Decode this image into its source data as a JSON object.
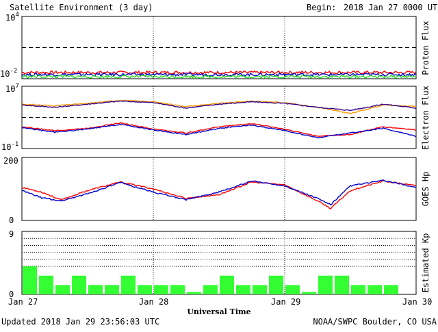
{
  "header": {
    "title": "Satellite Environment (3 day)",
    "begin_label": "Begin:",
    "begin_value": "2018 Jan 27 0000 UTC"
  },
  "footer": {
    "updated": "Updated 2018 Jan 29 23:56:03 UTC",
    "credit": "NOAA/SWPC Boulder, CO USA"
  },
  "x_axis": {
    "label": "Universal Time",
    "ticks": [
      "Jan 27",
      "Jan 28",
      "Jan 29",
      "Jan 30"
    ]
  },
  "colors": {
    "red": "#ff0000",
    "blue": "#0000cc",
    "green": "#22dd22",
    "orange": "#ff9900",
    "purple": "#330088",
    "bar_green": "#33ff33"
  },
  "chart_data": [
    {
      "type": "line",
      "ylabel": "Proton Flux",
      "y_scale": "log",
      "ylim_exponent": [
        -2,
        4
      ],
      "tick_labels": [
        {
          "base": "10",
          "exp": "4"
        },
        {
          "base": "10",
          "exp": "-2"
        }
      ],
      "threshold_exponent": 1,
      "x_days": [
        0,
        0.25,
        0.5,
        0.75,
        1,
        1.25,
        1.5,
        1.75,
        2,
        2.25,
        2.5,
        2.75,
        3
      ],
      "series": [
        {
          "color_key": "red",
          "values_exponent": [
            -1.4,
            -1.4,
            -1.4,
            -1.4,
            -1.4,
            -1.4,
            -1.4,
            -1.4,
            -1.4,
            -1.4,
            -1.4,
            -1.4,
            -1.4
          ]
        },
        {
          "color_key": "blue",
          "values_exponent": [
            -1.6,
            -1.6,
            -1.6,
            -1.6,
            -1.6,
            -1.6,
            -1.6,
            -1.6,
            -1.6,
            -1.6,
            -1.6,
            -1.6,
            -1.6
          ]
        },
        {
          "color_key": "green",
          "values_exponent": [
            -1.8,
            -1.8,
            -1.8,
            -1.8,
            -1.8,
            -1.8,
            -1.8,
            -1.8,
            -1.8,
            -1.8,
            -1.8,
            -1.8,
            -1.8
          ]
        }
      ]
    },
    {
      "type": "line",
      "ylabel": "Electron Flux",
      "y_scale": "log",
      "ylim_exponent": [
        -1,
        7
      ],
      "tick_labels": [
        {
          "base": "10",
          "exp": "7"
        },
        {
          "base": "10",
          "exp": "-1"
        }
      ],
      "threshold_exponent": 3,
      "x_days": [
        0,
        0.25,
        0.5,
        0.75,
        1,
        1.25,
        1.5,
        1.75,
        2,
        2.25,
        2.5,
        2.75,
        3
      ],
      "series": [
        {
          "color_key": "orange",
          "values_exponent": [
            4.7,
            4.5,
            4.8,
            5.2,
            5.0,
            4.4,
            4.8,
            5.1,
            4.9,
            4.3,
            3.5,
            4.6,
            4.4
          ]
        },
        {
          "color_key": "purple",
          "values_exponent": [
            4.6,
            4.3,
            4.7,
            5.1,
            4.9,
            4.2,
            4.7,
            5.0,
            4.8,
            4.3,
            3.9,
            4.7,
            4.2
          ]
        },
        {
          "color_key": "red",
          "values_exponent": [
            1.8,
            1.3,
            1.6,
            2.3,
            1.5,
            1.0,
            1.8,
            2.2,
            1.5,
            0.6,
            0.8,
            1.8,
            1.4
          ]
        },
        {
          "color_key": "blue",
          "values_exponent": [
            1.7,
            1.1,
            1.5,
            2.1,
            1.4,
            0.8,
            1.6,
            2.0,
            1.3,
            0.4,
            1.0,
            1.6,
            0.6
          ]
        }
      ]
    },
    {
      "type": "line",
      "ylabel": "GOES Hp",
      "ylim": [
        0,
        200
      ],
      "tick_labels": [
        "200",
        "0"
      ],
      "x_days": [
        0,
        0.15,
        0.3,
        0.5,
        0.75,
        1,
        1.25,
        1.5,
        1.75,
        2,
        2.25,
        2.35,
        2.5,
        2.75,
        3
      ],
      "series": [
        {
          "color_key": "red",
          "values": [
            105,
            90,
            65,
            95,
            122,
            100,
            70,
            82,
            122,
            113,
            62,
            38,
            95,
            125,
            110
          ]
        },
        {
          "color_key": "blue",
          "values": [
            95,
            72,
            62,
            85,
            120,
            90,
            66,
            90,
            125,
            110,
            70,
            50,
            110,
            127,
            105
          ]
        }
      ]
    },
    {
      "type": "bar",
      "ylabel": "Estimated Kp",
      "ylim": [
        0,
        9
      ],
      "tick_labels": [
        "9",
        "0"
      ],
      "gridlines": [
        4,
        5,
        6,
        7,
        8
      ],
      "values": [
        4,
        2.67,
        1.33,
        2.67,
        1.33,
        1.33,
        2.67,
        1.33,
        1.33,
        1.33,
        0.33,
        1.33,
        2.67,
        1.33,
        1.33,
        2.67,
        1.33,
        0.33,
        2.67,
        2.67,
        1.33,
        1.33,
        1.33,
        0
      ]
    }
  ]
}
